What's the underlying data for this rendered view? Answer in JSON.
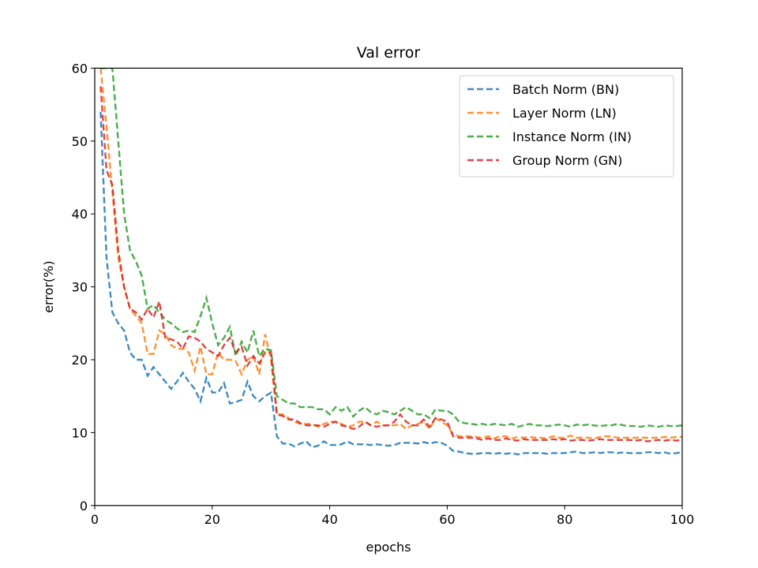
{
  "chart_data": {
    "type": "line",
    "title": "Val error",
    "xlabel": "epochs",
    "ylabel": "error(%)",
    "xlim": [
      0,
      100
    ],
    "ylim": [
      0,
      60
    ],
    "xticks": [
      0,
      20,
      40,
      60,
      80,
      100
    ],
    "yticks": [
      0,
      10,
      20,
      30,
      40,
      50,
      60
    ],
    "grid": false,
    "legend_position": "top-right",
    "line_style": "dashed",
    "x": [
      1,
      2,
      3,
      4,
      5,
      6,
      7,
      8,
      9,
      10,
      11,
      12,
      13,
      14,
      15,
      16,
      17,
      18,
      19,
      20,
      21,
      22,
      23,
      24,
      25,
      26,
      27,
      28,
      29,
      30,
      31,
      32,
      33,
      34,
      35,
      36,
      37,
      38,
      39,
      40,
      41,
      42,
      43,
      44,
      45,
      46,
      47,
      48,
      49,
      50,
      51,
      52,
      53,
      54,
      55,
      56,
      57,
      58,
      59,
      60,
      61,
      62,
      63,
      64,
      65,
      66,
      67,
      68,
      69,
      70,
      71,
      72,
      73,
      74,
      75,
      76,
      77,
      78,
      79,
      80,
      81,
      82,
      83,
      84,
      85,
      86,
      87,
      88,
      89,
      90,
      91,
      92,
      93,
      94,
      95,
      96,
      97,
      98,
      99,
      100
    ],
    "series": [
      {
        "name": "Batch Norm (BN)",
        "color": "#1f77b4",
        "values": [
          54,
          34,
          26.5,
          25,
          24,
          21,
          20,
          20,
          17.8,
          19,
          18,
          17,
          16,
          17,
          18.2,
          17,
          16,
          14.3,
          17.5,
          15.5,
          15.5,
          16.8,
          14,
          14.2,
          14.5,
          17,
          15,
          14.3,
          15,
          15.5,
          9.5,
          8.5,
          8.5,
          8.1,
          8.5,
          8.8,
          8.0,
          8.2,
          8.8,
          8.3,
          8.3,
          8.4,
          8.8,
          8.4,
          8.4,
          8.4,
          8.3,
          8.4,
          8.3,
          8.2,
          8.3,
          8.6,
          8.6,
          8.6,
          8.5,
          8.7,
          8.5,
          8.7,
          8.6,
          8.2,
          7.5,
          7.4,
          7.2,
          7.1,
          7.1,
          7.2,
          7.2,
          7.1,
          7.2,
          7.1,
          7.2,
          7.0,
          7.2,
          7.2,
          7.2,
          7.2,
          7.1,
          7.2,
          7.2,
          7.2,
          7.3,
          7.4,
          7.2,
          7.2,
          7.3,
          7.2,
          7.3,
          7.3,
          7.2,
          7.3,
          7.2,
          7.2,
          7.2,
          7.3,
          7.3,
          7.2,
          7.3,
          7.1,
          7.2,
          7.3
        ]
      },
      {
        "name": "Layer Norm (LN)",
        "color": "#ff7f0e",
        "values": [
          60,
          52,
          43,
          34,
          30,
          27,
          26,
          25,
          20.8,
          20.8,
          24,
          23.5,
          22,
          21.5,
          21.5,
          21,
          18.5,
          21.8,
          18,
          18,
          21,
          20,
          20,
          19.8,
          18,
          20,
          20.5,
          18,
          23.5,
          20,
          12.5,
          12.5,
          12,
          11.5,
          11.2,
          11.2,
          11.2,
          10.8,
          11.2,
          11.5,
          11.5,
          11.2,
          10.8,
          11,
          11.5,
          11.5,
          11,
          11.5,
          11,
          11,
          11,
          11.2,
          10.5,
          11,
          11.2,
          11.5,
          10.5,
          12,
          11.5,
          11,
          9.8,
          9.5,
          9.5,
          9.5,
          9.4,
          9.3,
          9.5,
          9.2,
          9.5,
          9.5,
          9.2,
          9.4,
          9.3,
          9.4,
          9.3,
          9.3,
          9.2,
          9.5,
          9.3,
          9.3,
          9.6,
          9.3,
          9.3,
          9.3,
          9.2,
          9.4,
          9.5,
          9.5,
          9.3,
          9.3,
          9.3,
          9.3,
          9.3,
          9.3,
          9.3,
          9.3,
          9.4,
          9.3,
          9.4,
          9.4
        ]
      },
      {
        "name": "Instance Norm (IN)",
        "color": "#2ca02c",
        "values": [
          60,
          60,
          60,
          50,
          40,
          35,
          33.5,
          31.5,
          27,
          27.5,
          26.5,
          25.5,
          25,
          24.3,
          23.8,
          24,
          23.8,
          26,
          28.5,
          25,
          22,
          23,
          24.5,
          20.5,
          22.5,
          21,
          24,
          20.5,
          21.5,
          21.3,
          15,
          14.5,
          14,
          14,
          13.5,
          13.5,
          13.5,
          13.2,
          13.2,
          12.5,
          13.5,
          13,
          13.5,
          12.2,
          13,
          13.5,
          12.8,
          12.5,
          13,
          12.8,
          12.5,
          13,
          13.5,
          13,
          12.5,
          12.5,
          12,
          13.2,
          13,
          13,
          12.5,
          11.5,
          11.3,
          11.2,
          11.1,
          11.2,
          11.0,
          11.2,
          11.1,
          11.0,
          11.2,
          10.8,
          11.0,
          11.2,
          11.0,
          11.0,
          10.9,
          11.0,
          11.1,
          11.0,
          10.8,
          11.1,
          11.0,
          11.1,
          11.0,
          10.9,
          11.0,
          11.0,
          11.2,
          11.0,
          10.9,
          10.9,
          10.8,
          11.0,
          10.9,
          10.8,
          11.0,
          10.9,
          10.9,
          11.0
        ]
      },
      {
        "name": "Group Norm (GN)",
        "color": "#d62728",
        "values": [
          57.5,
          46,
          44,
          35,
          30,
          27,
          26.5,
          25.5,
          27,
          25.8,
          28,
          23,
          22.8,
          22.5,
          21.5,
          23.2,
          23,
          22.5,
          21.5,
          21,
          20.5,
          22,
          23,
          21,
          21.8,
          19.2,
          20.5,
          19.5,
          21,
          21,
          12.5,
          12.3,
          11.8,
          11.8,
          11.3,
          11,
          11,
          11,
          10.8,
          11.2,
          11.5,
          11,
          10.8,
          10.5,
          10.8,
          11.5,
          11,
          10.8,
          11,
          11,
          11.5,
          12.5,
          11.5,
          11,
          11,
          11.8,
          10.8,
          12,
          11.8,
          11.5,
          9.5,
          9.3,
          9.3,
          9.3,
          9.2,
          9.0,
          9.2,
          9.0,
          9.0,
          9.2,
          9.0,
          8.9,
          9.1,
          9.0,
          9.0,
          9.0,
          9.0,
          9.1,
          9.0,
          9.1,
          8.9,
          9.0,
          9.0,
          8.9,
          9.0,
          9.1,
          9.0,
          9.0,
          9.0,
          9.0,
          9.0,
          8.9,
          9.0,
          8.8,
          8.9,
          9.0,
          8.9,
          9.0,
          8.9,
          9.0
        ]
      }
    ]
  }
}
